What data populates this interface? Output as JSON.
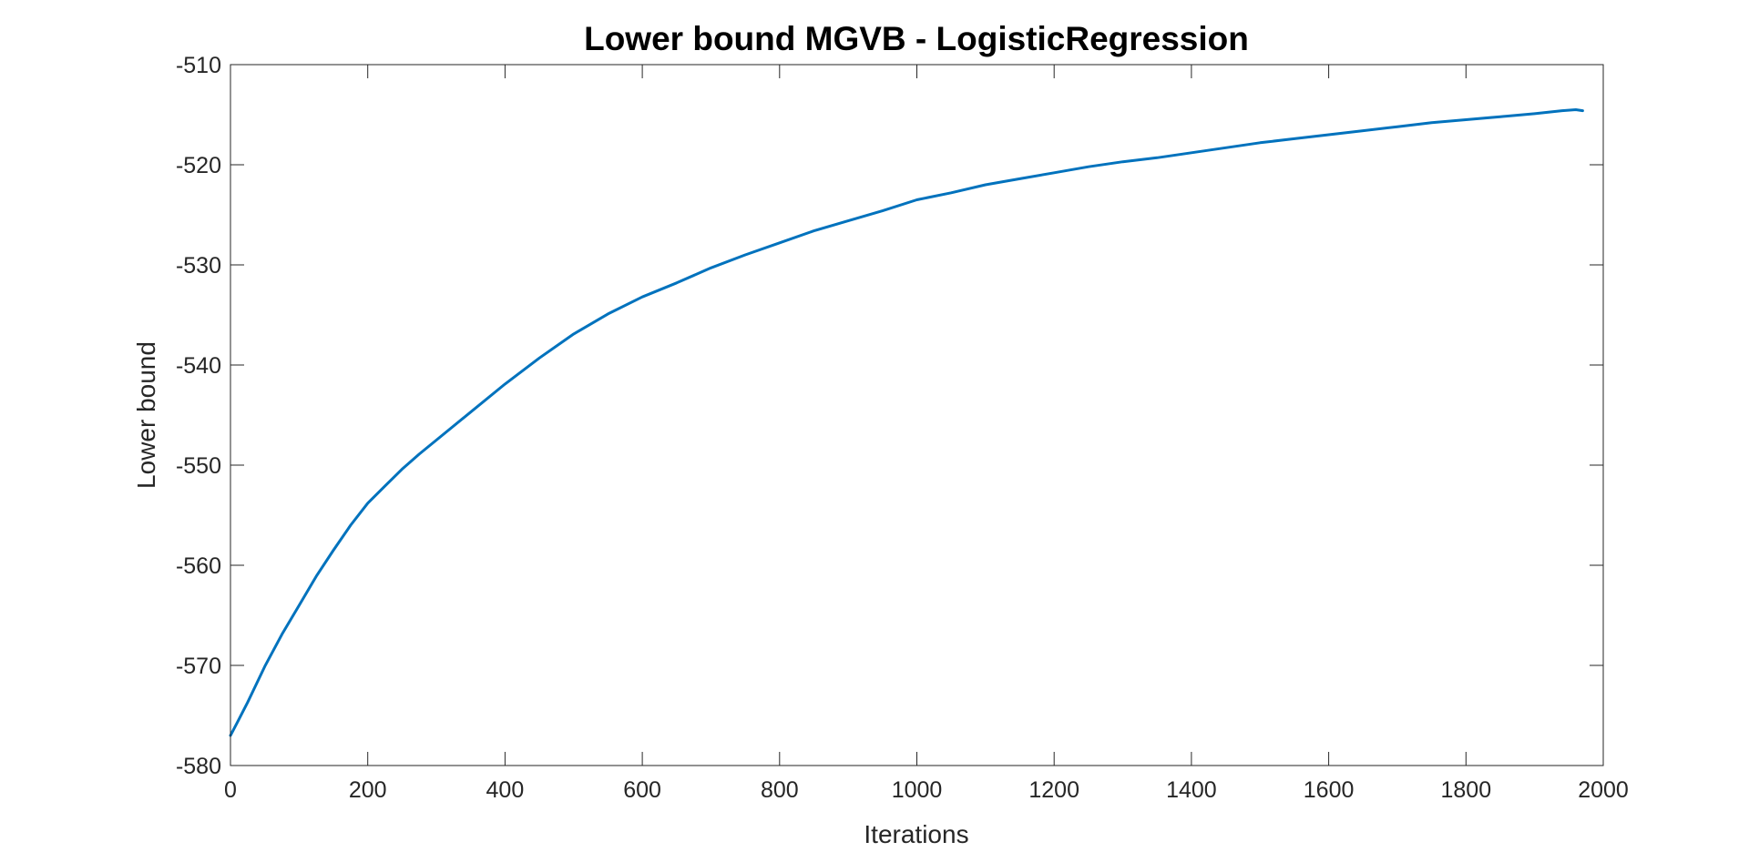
{
  "chart_data": {
    "type": "line",
    "title": "Lower bound MGVB - LogisticRegression",
    "xlabel": "Iterations",
    "ylabel": "Lower bound",
    "xlim": [
      0,
      2000
    ],
    "ylim": [
      -580,
      -510
    ],
    "xticks": [
      0,
      200,
      400,
      600,
      800,
      1000,
      1200,
      1400,
      1600,
      1800,
      2000
    ],
    "yticks": [
      -580,
      -570,
      -560,
      -550,
      -540,
      -530,
      -520,
      -510
    ],
    "grid": false,
    "box": true,
    "series": [
      {
        "color": "#0072BD",
        "x": [
          0,
          10,
          25,
          50,
          75,
          100,
          125,
          150,
          175,
          200,
          225,
          250,
          275,
          300,
          350,
          400,
          450,
          500,
          550,
          600,
          650,
          700,
          750,
          800,
          850,
          900,
          950,
          1000,
          1050,
          1100,
          1150,
          1200,
          1250,
          1300,
          1350,
          1400,
          1450,
          1500,
          1550,
          1600,
          1650,
          1700,
          1750,
          1800,
          1850,
          1900,
          1940,
          1960,
          1970
        ],
        "y": [
          -577.0,
          -575.7,
          -573.7,
          -570.1,
          -566.9,
          -564.0,
          -561.1,
          -558.5,
          -556.0,
          -553.8,
          -552.1,
          -550.4,
          -548.9,
          -547.5,
          -544.7,
          -541.9,
          -539.3,
          -536.9,
          -534.9,
          -533.2,
          -531.8,
          -530.3,
          -529.0,
          -527.8,
          -526.6,
          -525.6,
          -524.6,
          -523.5,
          -522.8,
          -522.0,
          -521.4,
          -520.8,
          -520.2,
          -519.7,
          -519.3,
          -518.8,
          -518.3,
          -517.8,
          -517.4,
          -517.0,
          -516.6,
          -516.2,
          -515.8,
          -515.5,
          -515.2,
          -514.9,
          -514.6,
          -514.5,
          -514.6
        ]
      }
    ]
  }
}
